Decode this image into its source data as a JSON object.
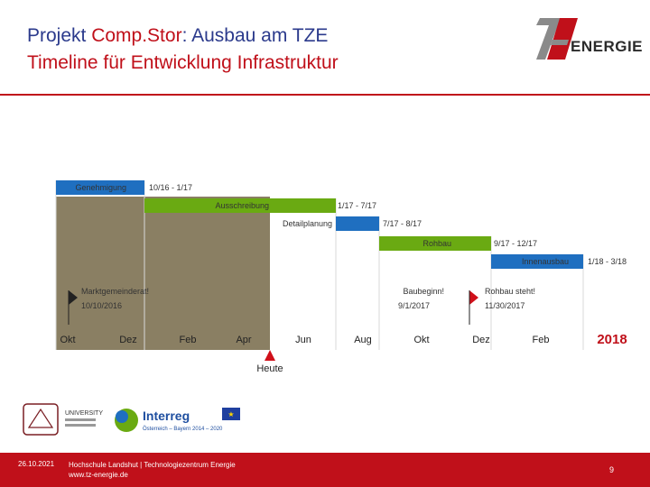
{
  "header": {
    "title_prefix": "Projekt ",
    "title_accent": "Comp.Stor",
    "title_suffix": ":  Ausbau am TZE",
    "subtitle": "Timeline für Entwicklung Infrastruktur",
    "logo_text": "ENERGIE"
  },
  "timeline": {
    "months": [
      "Okt",
      "Dez",
      "Feb",
      "Apr",
      "Jun",
      "Aug",
      "Okt",
      "Dez",
      "Feb"
    ],
    "year_label": "2018",
    "today_label": "Heute",
    "tasks": [
      {
        "name": "Genehmigung",
        "range": "10/16 - 1/17"
      },
      {
        "name": "Ausschreibung",
        "range": "1/17 - 7/17"
      },
      {
        "name": "Detailplanung",
        "range": "7/17 - 8/17"
      },
      {
        "name": "Rohbau",
        "range": "9/17 - 12/17"
      },
      {
        "name": "Innenausbau",
        "range": "1/18 - 3/18"
      }
    ],
    "milestones": [
      {
        "name": "Marktgemeinderat!",
        "date": "10/10/2016"
      },
      {
        "name": "Baubeginn!",
        "date": "9/1/2017"
      },
      {
        "name": "Rohbau steht!",
        "date": "11/30/2017"
      }
    ],
    "colors": {
      "blue": "#1f6fc0",
      "green": "#6aaa12",
      "past": "#8a7f63",
      "today": "#d0101a",
      "milestone": "#222222"
    }
  },
  "bottom_logos": {
    "university": "UNIVERSITY",
    "interreg": "Interreg",
    "interreg_sub": "Österreich – Bayern 2014 – 2020"
  },
  "footer": {
    "date": "26.10.2021",
    "org_line1": "Hochschule Landshut | Technologiezentrum Energie",
    "org_line2": "www.tz-energie.de",
    "page": "9"
  }
}
